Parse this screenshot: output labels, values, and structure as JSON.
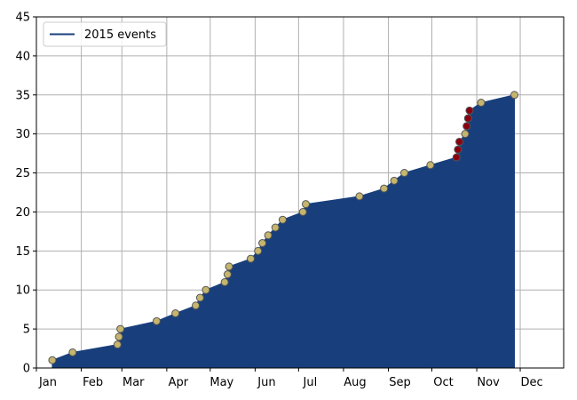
{
  "chart_data": {
    "type": "area",
    "xaxis_type": "date",
    "xlim": [
      "2015-01-01",
      "2015-12-31"
    ],
    "ylim": [
      0,
      45
    ],
    "yticks": [
      0,
      5,
      10,
      15,
      20,
      25,
      30,
      35,
      40,
      45
    ],
    "xticks": [
      {
        "date": "2015-01-01",
        "label": "Jan"
      },
      {
        "date": "2015-02-01",
        "label": "Feb"
      },
      {
        "date": "2015-03-01",
        "label": "Mar"
      },
      {
        "date": "2015-04-01",
        "label": "Apr"
      },
      {
        "date": "2015-05-01",
        "label": "May"
      },
      {
        "date": "2015-06-01",
        "label": "Jun"
      },
      {
        "date": "2015-07-01",
        "label": "Jul"
      },
      {
        "date": "2015-08-01",
        "label": "Aug"
      },
      {
        "date": "2015-09-01",
        "label": "Sep"
      },
      {
        "date": "2015-10-01",
        "label": "Oct"
      },
      {
        "date": "2015-11-01",
        "label": "Nov"
      },
      {
        "date": "2015-12-01",
        "label": "Dec"
      }
    ],
    "grid": true,
    "legend": {
      "position": "upper-left",
      "entries": [
        "2015 events"
      ]
    },
    "colors": {
      "fill": "#183f7c",
      "marker": "#c5b56e",
      "marker_edge": "#555555",
      "highlight": "#8b0010",
      "grid": "#b0b0b0"
    },
    "series": [
      {
        "name": "2015 events",
        "points": [
          {
            "x": "2015-01-12",
            "y": 1
          },
          {
            "x": "2015-01-26",
            "y": 2
          },
          {
            "x": "2015-02-26",
            "y": 3
          },
          {
            "x": "2015-02-27",
            "y": 4
          },
          {
            "x": "2015-02-28",
            "y": 5
          },
          {
            "x": "2015-03-25",
            "y": 6
          },
          {
            "x": "2015-04-07",
            "y": 7
          },
          {
            "x": "2015-04-21",
            "y": 8
          },
          {
            "x": "2015-04-24",
            "y": 9
          },
          {
            "x": "2015-04-28",
            "y": 10
          },
          {
            "x": "2015-05-11",
            "y": 11
          },
          {
            "x": "2015-05-13",
            "y": 12
          },
          {
            "x": "2015-05-14",
            "y": 13
          },
          {
            "x": "2015-05-29",
            "y": 14
          },
          {
            "x": "2015-06-03",
            "y": 15
          },
          {
            "x": "2015-06-06",
            "y": 16
          },
          {
            "x": "2015-06-10",
            "y": 17
          },
          {
            "x": "2015-06-15",
            "y": 18
          },
          {
            "x": "2015-06-20",
            "y": 19
          },
          {
            "x": "2015-07-04",
            "y": 20
          },
          {
            "x": "2015-07-06",
            "y": 21
          },
          {
            "x": "2015-08-12",
            "y": 22
          },
          {
            "x": "2015-08-29",
            "y": 23
          },
          {
            "x": "2015-09-05",
            "y": 24
          },
          {
            "x": "2015-09-12",
            "y": 25
          },
          {
            "x": "2015-09-30",
            "y": 26
          },
          {
            "x": "2015-10-18",
            "y": 27,
            "highlight": true
          },
          {
            "x": "2015-10-19",
            "y": 28,
            "highlight": true
          },
          {
            "x": "2015-10-20",
            "y": 29,
            "highlight": true
          },
          {
            "x": "2015-10-24",
            "y": 30
          },
          {
            "x": "2015-10-25",
            "y": 31,
            "highlight": true
          },
          {
            "x": "2015-10-26",
            "y": 32,
            "highlight": true
          },
          {
            "x": "2015-10-27",
            "y": 33,
            "highlight": true
          },
          {
            "x": "2015-11-04",
            "y": 34
          },
          {
            "x": "2015-11-27",
            "y": 35
          }
        ]
      }
    ]
  }
}
